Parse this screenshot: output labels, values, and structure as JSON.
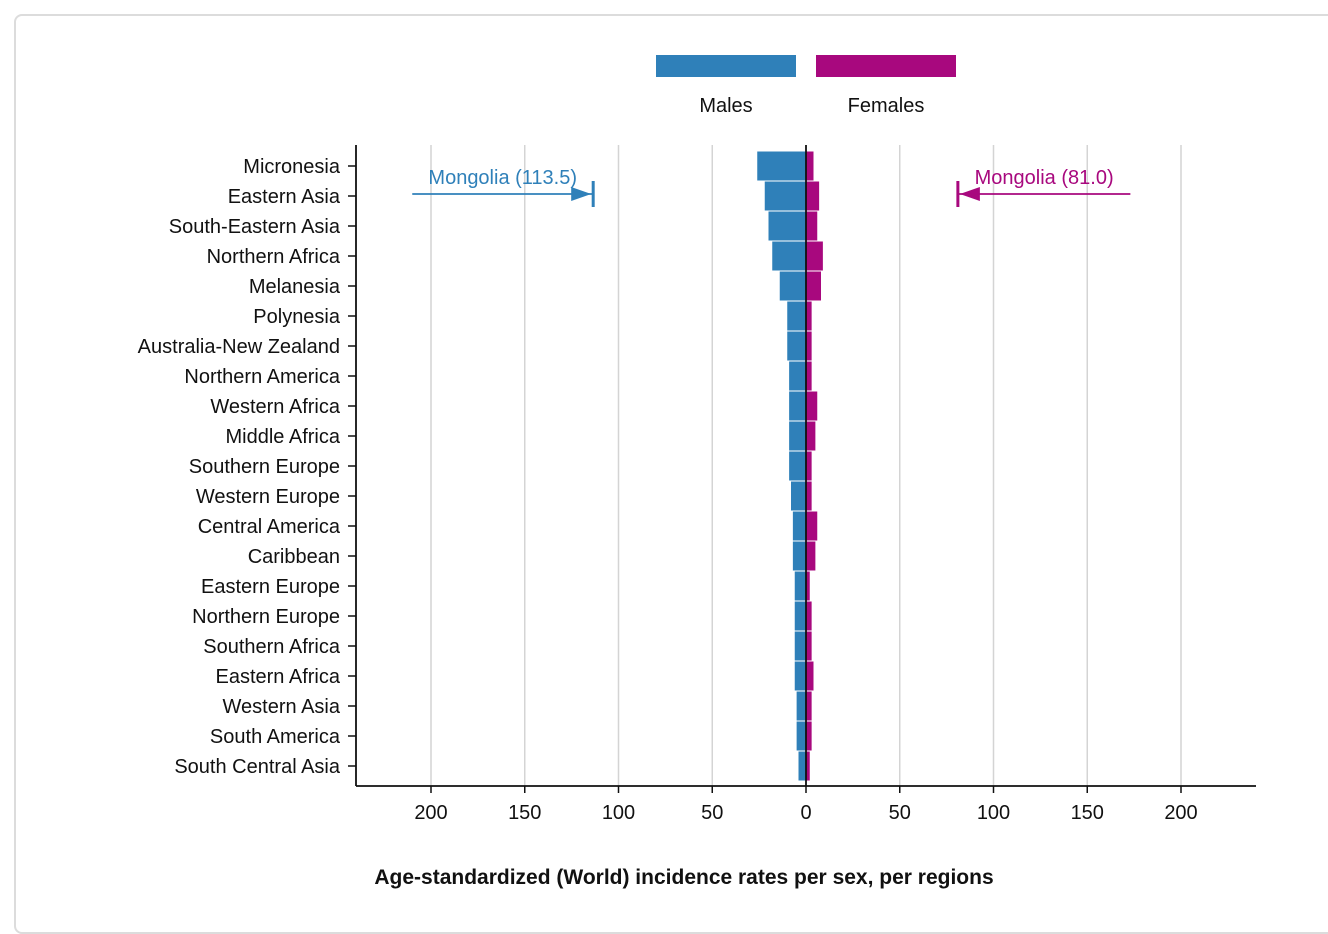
{
  "chart_data": {
    "type": "bar",
    "orientation": "horizontal-diverging",
    "title": "Age-standardized (World) incidence rates per sex, per regions",
    "categories": [
      "Micronesia",
      "Eastern Asia",
      "South-Eastern Asia",
      "Northern Africa",
      "Melanesia",
      "Polynesia",
      "Australia-New Zealand",
      "Northern America",
      "Western Africa",
      "Middle Africa",
      "Southern Europe",
      "Western Europe",
      "Central America",
      "Caribbean",
      "Eastern Europe",
      "Northern Europe",
      "Southern Africa",
      "Eastern Africa",
      "Western Asia",
      "South America",
      "South Central Asia"
    ],
    "series": [
      {
        "name": "Males",
        "color": "#2f80b9",
        "side": "left",
        "values": [
          26,
          22,
          20,
          18,
          14,
          10,
          10,
          9,
          9,
          9,
          9,
          8,
          7,
          7,
          6,
          6,
          6,
          6,
          5,
          5,
          4
        ]
      },
      {
        "name": "Females",
        "color": "#a8087e",
        "side": "right",
        "values": [
          4,
          7,
          6,
          9,
          8,
          3,
          3,
          3,
          6,
          5,
          3,
          3,
          6,
          5,
          2,
          3,
          3,
          4,
          3,
          3,
          2
        ]
      }
    ],
    "xlim": [
      -240,
      240
    ],
    "xticks": [
      -200,
      -150,
      -100,
      -50,
      0,
      50,
      100,
      150,
      200
    ],
    "xtick_labels": [
      "200",
      "150",
      "100",
      "50",
      "0",
      "50",
      "100",
      "150",
      "200"
    ],
    "grid": true,
    "legend": "top-center",
    "annotations": [
      {
        "text": "Mongolia (113.5)",
        "series": "Males",
        "value": 113.5,
        "arrow_from": 210
      },
      {
        "text": "Mongolia (81.0)",
        "series": "Females",
        "value": 81.0,
        "arrow_from": 173
      }
    ]
  }
}
